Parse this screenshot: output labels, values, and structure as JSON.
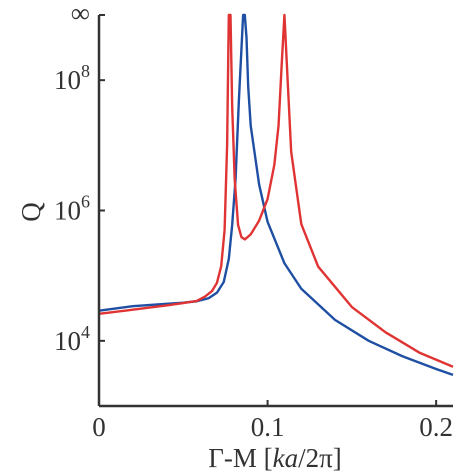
{
  "chart_data": {
    "type": "line",
    "title": "",
    "xlabel": "Γ-M [ka/2π]",
    "xlabel_parts": {
      "pre": "Γ-M [",
      "italic": "ka",
      "post": "/2π]"
    },
    "ylabel": "Q",
    "xlim": [
      0,
      0.21
    ],
    "ylim_log10": [
      3,
      9
    ],
    "y_scale": "log",
    "grid": false,
    "x_ticks": [
      {
        "value": 0,
        "label": "0"
      },
      {
        "value": 0.1,
        "label": "0.1"
      },
      {
        "value": 0.2,
        "label": "0.2"
      }
    ],
    "y_ticks": [
      {
        "exp": 4,
        "base": "10",
        "sup": "4"
      },
      {
        "exp": 6,
        "base": "10",
        "sup": "6"
      },
      {
        "exp": 8,
        "base": "10",
        "sup": "8"
      },
      {
        "exp": 9,
        "base": "∞",
        "sup": ""
      }
    ],
    "series": [
      {
        "color": "#1f4fa3",
        "x": [
          0,
          0.02,
          0.04,
          0.05,
          0.058,
          0.065,
          0.07,
          0.074,
          0.077,
          0.079,
          0.081,
          0.083,
          0.0845,
          0.0855,
          0.0865,
          0.0875,
          0.0885,
          0.09,
          0.095,
          0.1,
          0.11,
          0.12,
          0.14,
          0.16,
          0.18,
          0.2,
          0.21
        ],
        "y": [
          29000,
          34000,
          37000,
          38500,
          40500,
          45000,
          55000,
          80000,
          180000,
          600000,
          3000000,
          50000000,
          300000000,
          1000000000,
          1000000000,
          450000000,
          80000000,
          20000000,
          2500000,
          670000,
          155000,
          63000,
          21000,
          10000,
          5800,
          3700,
          3000
        ]
      },
      {
        "color": "#e03434",
        "x": [
          0,
          0.02,
          0.04,
          0.05,
          0.058,
          0.063,
          0.067,
          0.07,
          0.0725,
          0.0745,
          0.076,
          0.077,
          0.078,
          0.079,
          0.0805,
          0.0825,
          0.0845,
          0.0865,
          0.09,
          0.095,
          0.1,
          0.104,
          0.1065,
          0.1085,
          0.11,
          0.111,
          0.114,
          0.12,
          0.13,
          0.15,
          0.17,
          0.19,
          0.21
        ],
        "y": [
          26000,
          30000,
          35000,
          38000,
          41000,
          48000,
          58000,
          78000,
          140000,
          500000,
          10000000,
          1000000000,
          1000000000,
          40000000,
          3000000,
          600000,
          390000,
          360000,
          430000,
          700000,
          1500000,
          5000000,
          20000000,
          200000000,
          1000000000,
          300000000,
          8000000,
          620000,
          138000,
          33000,
          13500,
          6600,
          4000
        ]
      }
    ]
  }
}
